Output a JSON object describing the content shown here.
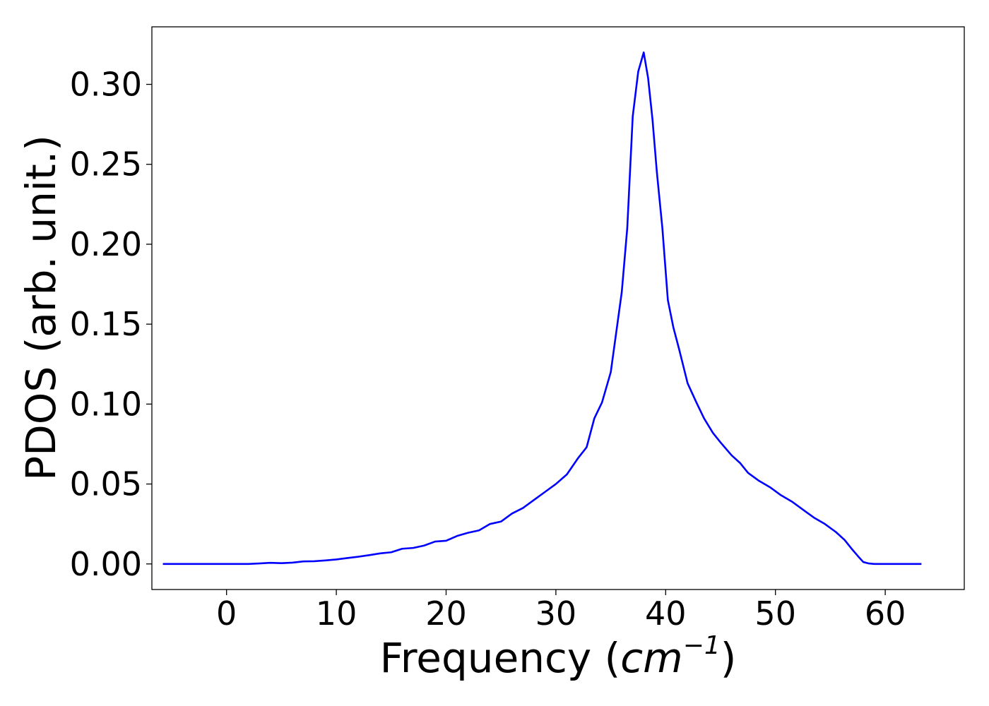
{
  "chart_data": {
    "type": "line",
    "title": "",
    "xlabel_main": "Frequency (",
    "xlabel_unit": "cm",
    "xlabel_exp": "−1",
    "xlabel_close": ")",
    "ylabel": "PDOS (arb. unit.)",
    "xlim": [
      -6.8,
      67.2
    ],
    "ylim": [
      -0.016,
      0.336
    ],
    "xticks": [
      0,
      10,
      20,
      30,
      40,
      50,
      60
    ],
    "xtick_labels": [
      "0",
      "10",
      "20",
      "30",
      "40",
      "50",
      "60"
    ],
    "yticks": [
      0.0,
      0.05,
      0.1,
      0.15,
      0.2,
      0.25,
      0.3
    ],
    "ytick_labels": [
      "0.00",
      "0.05",
      "0.10",
      "0.15",
      "0.20",
      "0.25",
      "0.30"
    ],
    "grid": false,
    "line_color": "#0000ff",
    "series": [
      {
        "x": [
          -5.8,
          -2,
          0,
          2,
          3,
          4,
          5,
          6,
          7,
          8,
          9,
          10,
          11,
          12,
          13,
          14,
          15,
          16,
          17,
          18,
          19,
          20,
          21,
          22,
          23,
          24,
          25,
          26,
          27,
          28,
          29,
          30,
          31,
          32,
          32.8,
          33.5,
          34.2,
          35,
          35.6,
          36,
          36.5,
          37,
          37.5,
          38,
          38.4,
          38.8,
          39.2,
          39.7,
          40.2,
          40.7,
          41.2,
          42,
          42.8,
          43.5,
          44.3,
          45,
          46,
          46.8,
          47.5,
          48.5,
          49.5,
          50.5,
          51.5,
          52.5,
          53.5,
          54.5,
          55.5,
          56.3,
          57,
          57.5,
          58,
          58.5,
          59,
          60,
          63.3
        ],
        "y": [
          0.0,
          0.0,
          0.0,
          0.0,
          0.0003,
          0.0007,
          0.0005,
          0.0008,
          0.0016,
          0.0017,
          0.0022,
          0.0028,
          0.0037,
          0.0045,
          0.0055,
          0.0066,
          0.0073,
          0.0095,
          0.01,
          0.0115,
          0.014,
          0.0145,
          0.0175,
          0.0195,
          0.021,
          0.025,
          0.0265,
          0.0315,
          0.035,
          0.04,
          0.045,
          0.05,
          0.056,
          0.066,
          0.073,
          0.091,
          0.101,
          0.12,
          0.15,
          0.17,
          0.21,
          0.28,
          0.308,
          0.32,
          0.304,
          0.278,
          0.245,
          0.21,
          0.165,
          0.148,
          0.135,
          0.113,
          0.101,
          0.091,
          0.082,
          0.076,
          0.068,
          0.063,
          0.057,
          0.052,
          0.048,
          0.043,
          0.039,
          0.034,
          0.029,
          0.025,
          0.02,
          0.015,
          0.009,
          0.005,
          0.0012,
          0.0003,
          0.0,
          0.0,
          0.0
        ]
      }
    ]
  }
}
